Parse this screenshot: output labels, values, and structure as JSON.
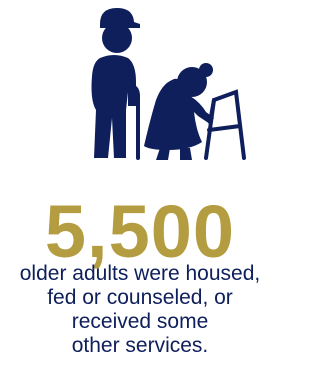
{
  "stat": {
    "value": "5,500",
    "description": [
      "older adults were housed,",
      "fed or counseled, or",
      "received some",
      "other services."
    ]
  }
}
